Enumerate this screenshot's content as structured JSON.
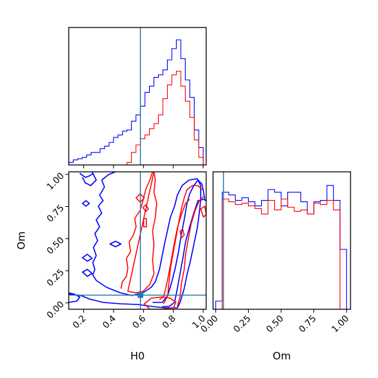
{
  "chart_data": {
    "type": "corner",
    "parameters": [
      "H0",
      "Om"
    ],
    "truth": {
      "H0": 0.58,
      "Om": 0.06
    },
    "series_colors": {
      "blue": "#0000ff",
      "red": "#ff0000",
      "truth": "#1f77b4"
    },
    "panels": [
      {
        "id": "hist_H0",
        "type": "step-histogram",
        "xlim": [
          0.1,
          1.02
        ],
        "bin_edges": [
          0.1,
          0.13,
          0.16,
          0.19,
          0.22,
          0.25,
          0.28,
          0.31,
          0.34,
          0.37,
          0.4,
          0.43,
          0.46,
          0.49,
          0.52,
          0.55,
          0.58,
          0.61,
          0.64,
          0.67,
          0.7,
          0.73,
          0.76,
          0.79,
          0.82,
          0.85,
          0.88,
          0.91,
          0.94,
          0.97,
          1.0
        ],
        "series": [
          {
            "color": "blue",
            "counts": [
              0.02,
              0.04,
              0.05,
              0.06,
              0.08,
              0.1,
              0.1,
              0.13,
              0.15,
              0.18,
              0.22,
              0.24,
              0.27,
              0.28,
              0.35,
              0.4,
              0.47,
              0.58,
              0.63,
              0.7,
              0.72,
              0.76,
              0.84,
              0.93,
              1.0,
              0.85,
              0.68,
              0.54,
              0.28,
              0.14
            ]
          },
          {
            "color": "red",
            "counts": [
              0,
              0,
              0,
              0,
              0,
              0,
              0,
              0,
              0,
              0,
              0,
              0,
              0,
              0.02,
              0.1,
              0.16,
              0.21,
              0.24,
              0.29,
              0.33,
              0.4,
              0.53,
              0.64,
              0.72,
              0.75,
              0.63,
              0.51,
              0.38,
              0.2,
              0.06
            ]
          }
        ]
      },
      {
        "id": "contour_H0_Om",
        "type": "contour",
        "xlim": [
          0.1,
          1.02
        ],
        "ylim": [
          -0.05,
          1.02
        ],
        "xticks": [
          "0.2",
          "0.4",
          "0.6",
          "0.8",
          "1.0"
        ],
        "yticks": [
          "0.00",
          "0.25",
          "0.50",
          "0.75",
          "1.00"
        ],
        "xlabel": "H0",
        "ylabel": "Om",
        "truth_marker": [
          0.58,
          0.06
        ]
      },
      {
        "id": "hist_Om",
        "type": "step-histogram",
        "xlim": [
          -0.02,
          1.03
        ],
        "xticks": [
          "0.00",
          "0.25",
          "0.50",
          "0.75",
          "1.00"
        ],
        "xlabel": "Om",
        "bin_edges": [
          0.0,
          0.05,
          0.1,
          0.15,
          0.2,
          0.25,
          0.3,
          0.35,
          0.4,
          0.45,
          0.5,
          0.55,
          0.6,
          0.65,
          0.7,
          0.75,
          0.8,
          0.85,
          0.9,
          0.95,
          1.0
        ],
        "series": [
          {
            "color": "blue",
            "counts": [
              0.06,
              0.86,
              0.84,
              0.8,
              0.82,
              0.79,
              0.76,
              0.8,
              0.88,
              0.86,
              0.76,
              0.86,
              0.86,
              0.79,
              0.7,
              0.79,
              0.8,
              0.91,
              0.8,
              0.44
            ]
          },
          {
            "color": "red",
            "counts": [
              0,
              0.81,
              0.79,
              0.77,
              0.78,
              0.76,
              0.74,
              0.7,
              0.8,
              0.73,
              0.81,
              0.75,
              0.72,
              0.73,
              0.7,
              0.78,
              0.77,
              0.8,
              0.73,
              0
            ]
          }
        ]
      }
    ]
  }
}
